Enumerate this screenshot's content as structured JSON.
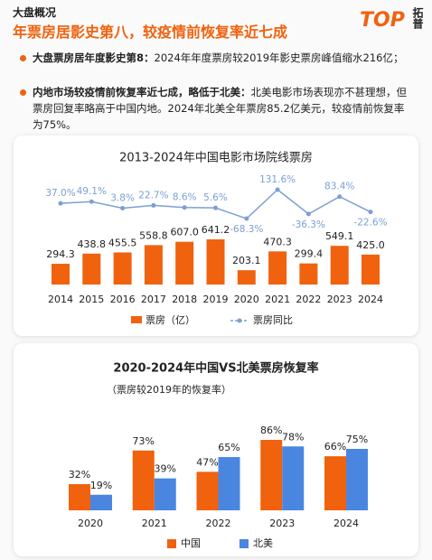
{
  "header": {
    "section": "大盘概况",
    "title": "年票房居影史第八，较疫情前恢复率近七成"
  },
  "logo": {
    "brand": "TOP",
    "name": "拓普"
  },
  "bullets": [
    {
      "bold": "大盘票房居年度影史第8：",
      "text": "2024年年度票房较2019年影史票房峰值缩水216亿；"
    },
    {
      "bold": "内地市场较疫情前恢复率近七成，略低于北美：",
      "text": "北美电影市场表现亦不甚理想，但票房回复率略高于中国内地。2024年北美全年票房85.2亿美元，较疫情前恢复率为75%。"
    }
  ],
  "chart_data": [
    {
      "type": "combo",
      "title": "2013-2024年中国电影市场院线票房",
      "categories": [
        "2014",
        "2015",
        "2016",
        "2017",
        "2018",
        "2019",
        "2020",
        "2021",
        "2022",
        "2023",
        "2024"
      ],
      "series": [
        {
          "name": "票房（亿）",
          "type": "bar",
          "color": "#f0620e",
          "values": [
            294.3,
            438.8,
            455.5,
            558.8,
            607.0,
            641.2,
            203.1,
            470.3,
            299.4,
            549.1,
            425.0
          ],
          "value_labels": [
            "294.3",
            "438.8",
            "455.5",
            "558.8",
            "607.0",
            "641.2",
            "203.1",
            "470.3",
            "299.4",
            "549.1",
            "425.0"
          ]
        },
        {
          "name": "票房同比",
          "type": "line",
          "color": "#7b9fd4",
          "values": [
            37.0,
            49.1,
            3.8,
            22.7,
            8.6,
            5.6,
            -68.3,
            131.6,
            -36.3,
            83.4,
            -22.6
          ],
          "value_labels": [
            "37.0%",
            "49.1%",
            "3.8%",
            "22.7%",
            "8.6%",
            "5.6%",
            "-68.3%",
            "131.6%",
            "-36.3%",
            "83.4%",
            "-22.6%"
          ]
        }
      ]
    },
    {
      "type": "bar",
      "title": "2020-2024年中国VS北美票房恢复率",
      "subtitle": "（票房较2019年的恢复率）",
      "categories": [
        "2020",
        "2021",
        "2022",
        "2023",
        "2024"
      ],
      "series": [
        {
          "name": "中国",
          "color": "#f0620e",
          "values": [
            32,
            73,
            47,
            86,
            66
          ],
          "value_labels": [
            "32%",
            "73%",
            "47%",
            "86%",
            "66%"
          ]
        },
        {
          "name": "北美",
          "color": "#4a86e0",
          "values": [
            19,
            39,
            65,
            78,
            75
          ],
          "value_labels": [
            "19%",
            "39%",
            "65%",
            "78%",
            "75%"
          ]
        }
      ]
    }
  ]
}
